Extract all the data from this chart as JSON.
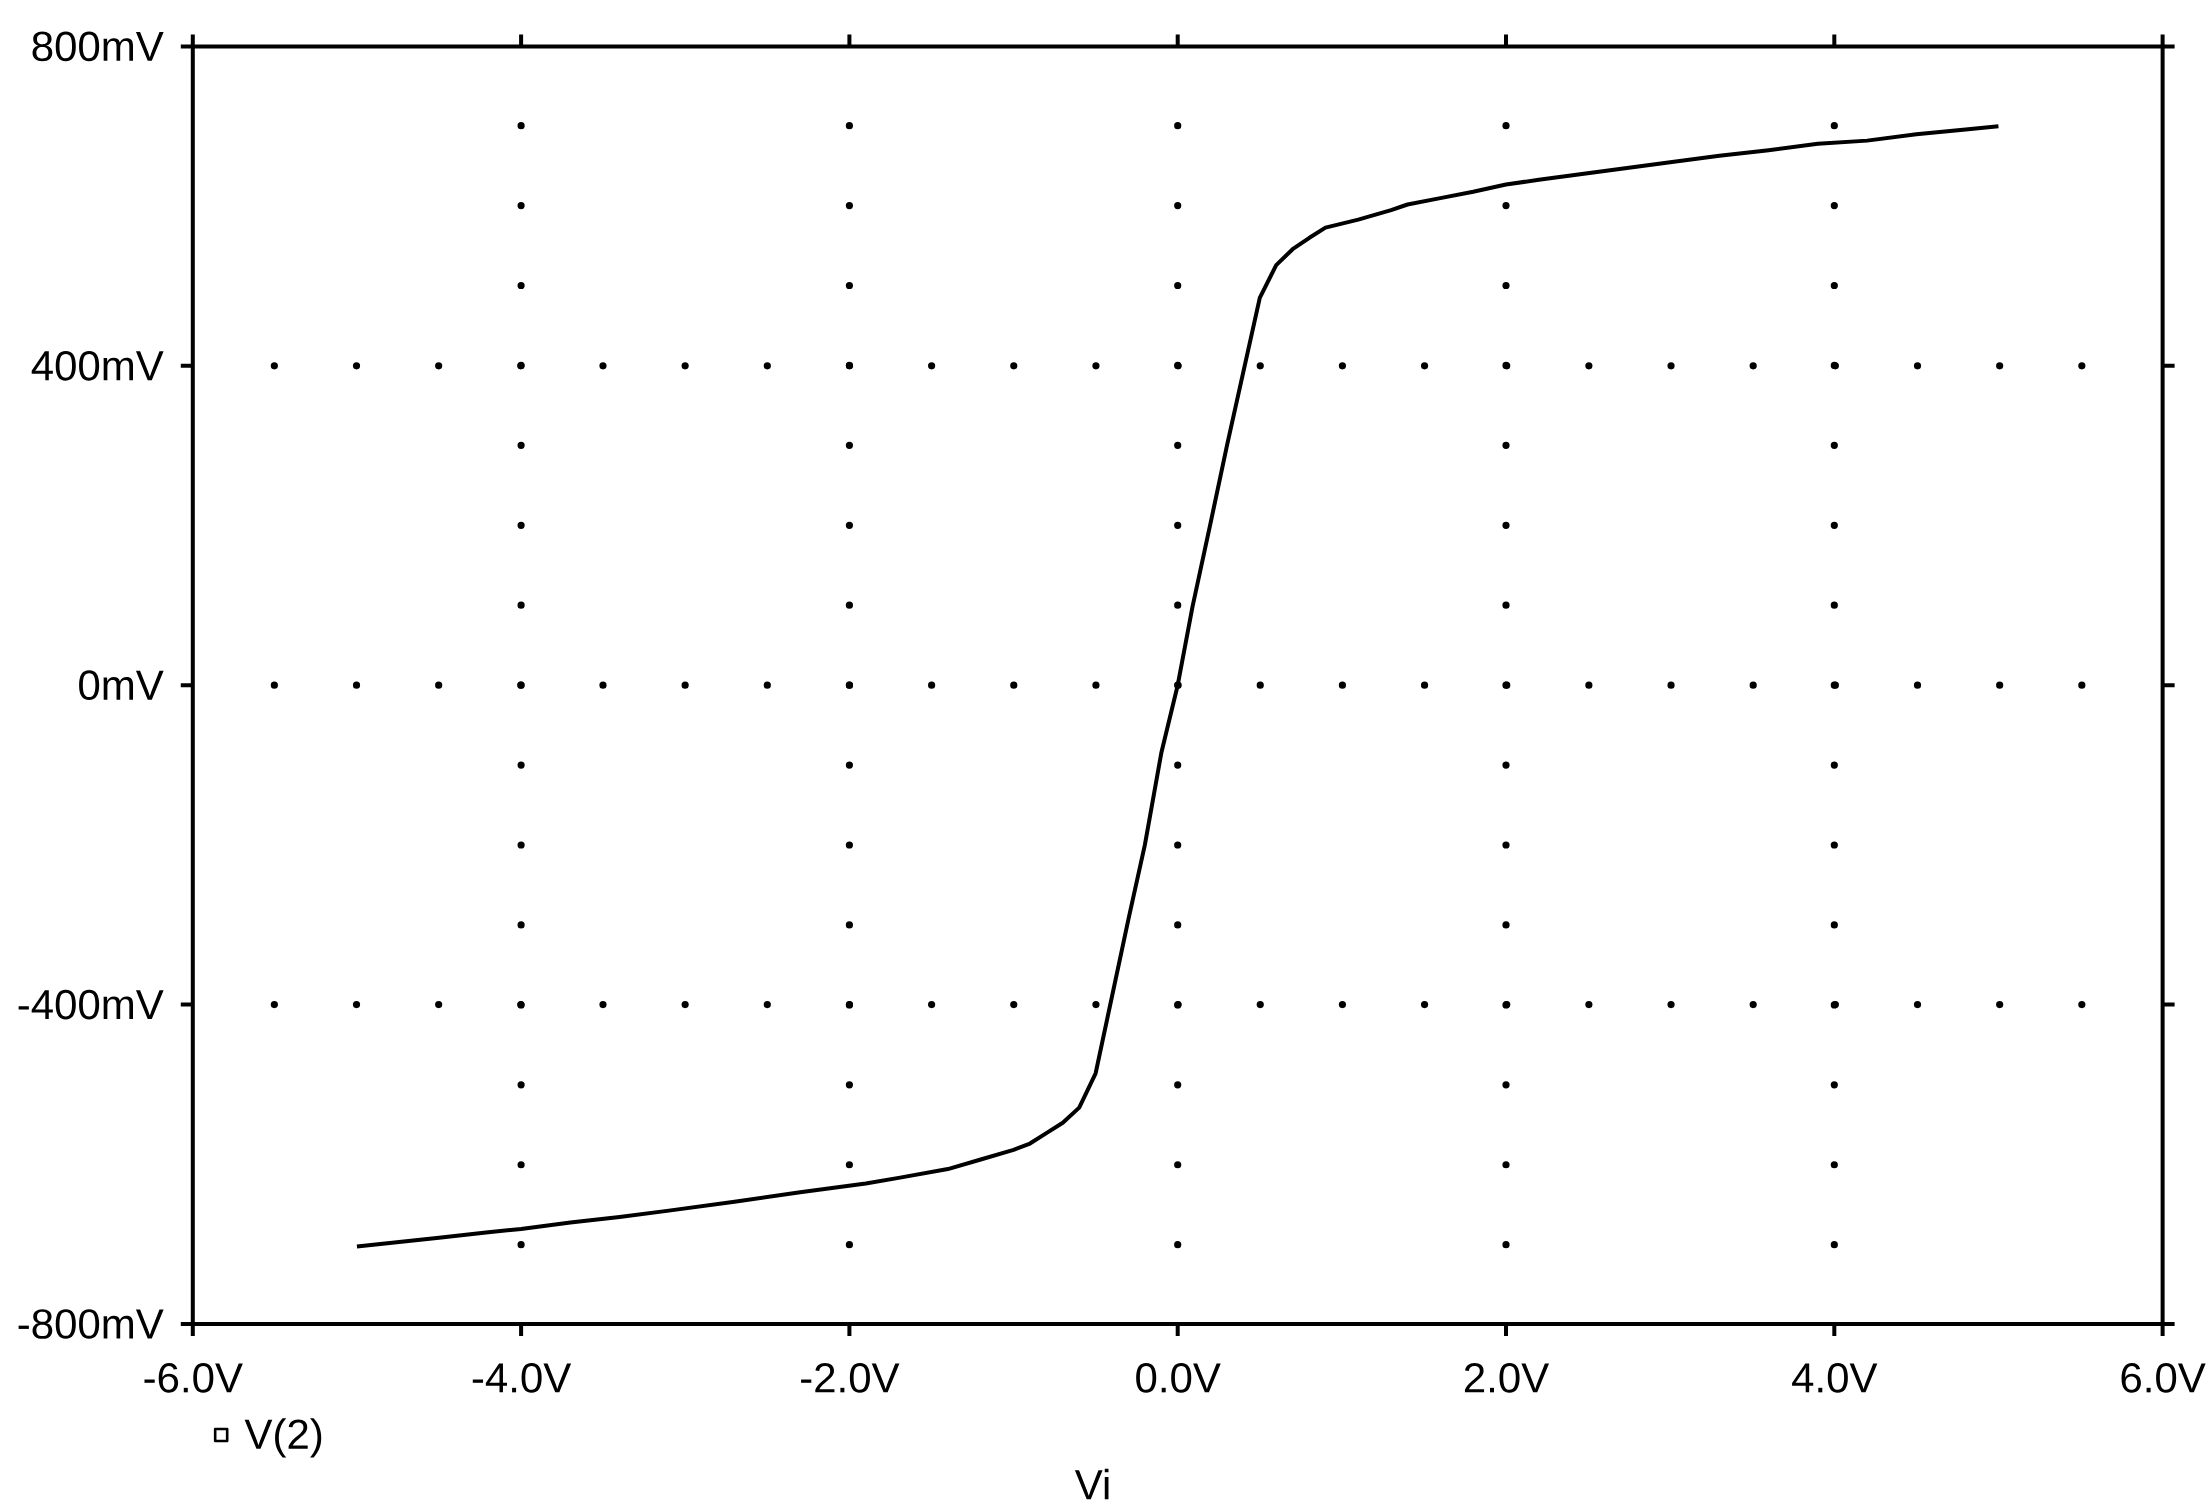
{
  "chart_data": {
    "type": "line",
    "xlabel": "Vi",
    "x": [
      -5.0,
      -4.5,
      -4.2,
      -4.0,
      -3.7,
      -3.4,
      -3.1,
      -2.7,
      -2.3,
      -1.9,
      -1.7,
      -1.4,
      -1.2,
      -1.0,
      -0.9,
      -0.8,
      -0.7,
      -0.6,
      -0.5,
      -0.3,
      -0.2,
      -0.1,
      0,
      0.09,
      0.2,
      0.3,
      0.5,
      0.6,
      0.7,
      0.8,
      0.9,
      1.1,
      1.3,
      1.4,
      1.6,
      1.8,
      2.0,
      2.2,
      2.6,
      3.0,
      3.3,
      3.6,
      3.9,
      4.2,
      4.5,
      4.8,
      5.0
    ],
    "series": [
      {
        "name": "V(2)",
        "color": "#000000",
        "line_style": "solid",
        "values": [
          -703,
          -692,
          -685,
          -681,
          -673,
          -666,
          -658,
          -647,
          -635,
          -624,
          -617,
          -606,
          -594,
          -582,
          -574,
          -561,
          -548,
          -529,
          -486,
          -293,
          -200,
          -85,
          0,
          98,
          203,
          300,
          485,
          526,
          546,
          560,
          573,
          583,
          595,
          602,
          610,
          618,
          627,
          633,
          644,
          655,
          663,
          670,
          678,
          682,
          690,
          696,
          700
        ]
      }
    ],
    "xlim": [
      -6,
      6
    ],
    "ylim": [
      -800,
      800
    ],
    "xticks": [
      {
        "value": -6,
        "label": "-6.0V"
      },
      {
        "value": -4,
        "label": "-4.0V"
      },
      {
        "value": -2,
        "label": "-2.0V"
      },
      {
        "value": 0,
        "label": "0.0V"
      },
      {
        "value": 2,
        "label": "2.0V"
      },
      {
        "value": 4,
        "label": "4.0V"
      },
      {
        "value": 6,
        "label": "6.0V"
      }
    ],
    "yticks": [
      {
        "value": -800,
        "label": "-800mV"
      },
      {
        "value": -400,
        "label": "-400mV"
      },
      {
        "value": 0,
        "label": "0mV"
      },
      {
        "value": 400,
        "label": "400mV"
      },
      {
        "value": 800,
        "label": "800mV"
      }
    ],
    "grid": true,
    "legend": "bottom left"
  }
}
